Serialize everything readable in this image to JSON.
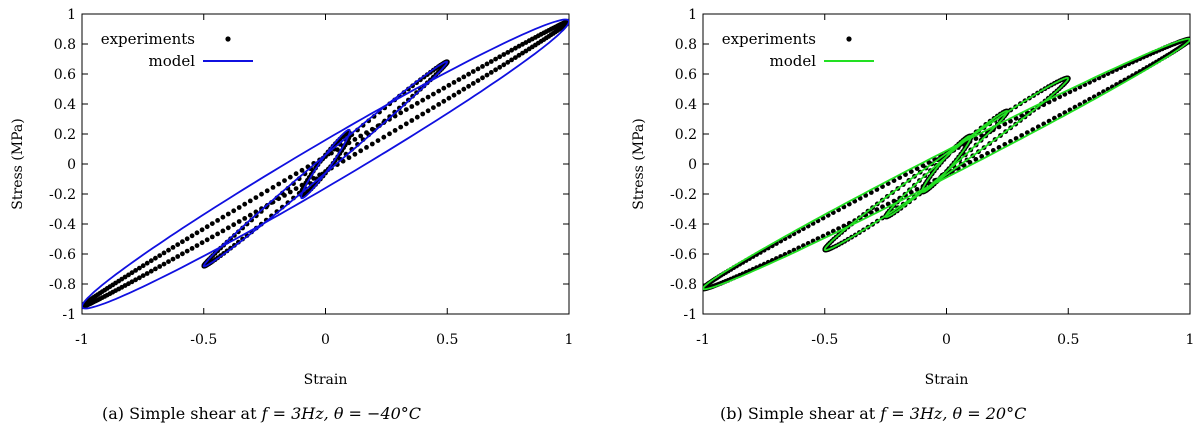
{
  "captions": [
    {
      "prefix": "(a) Simple shear at ",
      "math": "f = 3Hz, θ = −40°C"
    },
    {
      "prefix": "(b) Simple shear at ",
      "math": "f = 3Hz, θ = 20°C"
    }
  ],
  "chart_data": [
    {
      "type": "scatter",
      "xlabel": "Strain",
      "ylabel": "Stress (MPa)",
      "xlim": [
        -1,
        1
      ],
      "ylim": [
        -1,
        1
      ],
      "xticks": [
        "-1",
        "-0.5",
        "0",
        "0.5",
        "1"
      ],
      "yticks": [
        "-1",
        "-0.8",
        "-0.6",
        "-0.4",
        "-0.2",
        "0",
        "0.2",
        "0.4",
        "0.6",
        "0.8",
        "1"
      ],
      "legend": [
        {
          "label": "experiments",
          "marker": "dot"
        },
        {
          "label": "model",
          "marker": "line"
        }
      ],
      "legend_position": "top-left",
      "colors": {
        "experiments": "#000000",
        "model": "#1010e0"
      },
      "series": [
        {
          "name": "experiments",
          "kind": "loops",
          "loops": [
            {
              "amplitude": 1.0,
              "peak_stress": 0.95,
              "half_width": 0.05
            },
            {
              "amplitude": 0.5,
              "peak_stress": 0.68,
              "half_width": 0.05
            },
            {
              "amplitude": 0.1,
              "peak_stress": 0.2,
              "half_width": 0.06
            }
          ]
        },
        {
          "name": "model",
          "kind": "loops",
          "loops": [
            {
              "amplitude": 1.0,
              "peak_stress": 0.95,
              "half_width": 0.16
            },
            {
              "amplitude": 0.5,
              "peak_stress": 0.68,
              "half_width": 0.06
            },
            {
              "amplitude": 0.1,
              "peak_stress": 0.22,
              "half_width": 0.06
            }
          ]
        }
      ]
    },
    {
      "type": "scatter",
      "xlabel": "Strain",
      "ylabel": "Stress (MPa)",
      "xlim": [
        -1,
        1
      ],
      "ylim": [
        -1,
        1
      ],
      "xticks": [
        "-1",
        "-0.5",
        "0",
        "0.5",
        "1"
      ],
      "yticks": [
        "-1",
        "-0.8",
        "-0.6",
        "-0.4",
        "-0.2",
        "0",
        "0.2",
        "0.4",
        "0.6",
        "0.8",
        "1"
      ],
      "legend": [
        {
          "label": "experiments",
          "marker": "dot"
        },
        {
          "label": "model",
          "marker": "line"
        }
      ],
      "legend_position": "top-left",
      "colors": {
        "experiments": "#000000",
        "model": "#22e022"
      },
      "series": [
        {
          "name": "experiments",
          "kind": "loops",
          "loops": [
            {
              "amplitude": 1.0,
              "peak_stress": 0.83,
              "half_width": 0.07
            },
            {
              "amplitude": 0.5,
              "peak_stress": 0.57,
              "half_width": 0.07
            },
            {
              "amplitude": 0.25,
              "peak_stress": 0.35,
              "half_width": 0.05
            },
            {
              "amplitude": 0.1,
              "peak_stress": 0.18,
              "half_width": 0.05
            }
          ]
        },
        {
          "name": "model",
          "kind": "loops",
          "loops": [
            {
              "amplitude": 1.0,
              "peak_stress": 0.83,
              "half_width": 0.09
            },
            {
              "amplitude": 0.5,
              "peak_stress": 0.57,
              "half_width": 0.07
            },
            {
              "amplitude": 0.25,
              "peak_stress": 0.35,
              "half_width": 0.05
            },
            {
              "amplitude": 0.1,
              "peak_stress": 0.18,
              "half_width": 0.05
            }
          ]
        }
      ]
    }
  ]
}
